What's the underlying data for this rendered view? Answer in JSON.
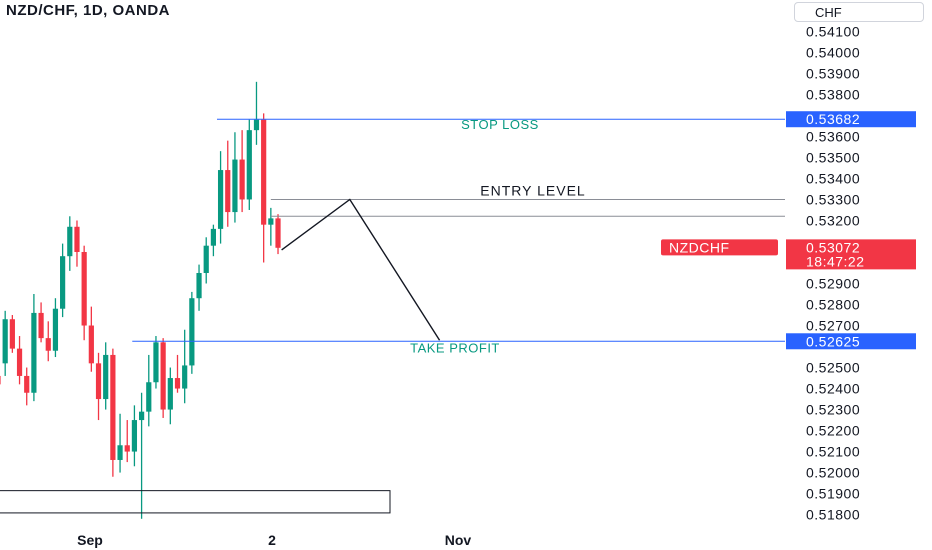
{
  "header": {
    "symbol_title": "NZD/CHF, 1D, OANDA",
    "currency_label": "CHF"
  },
  "chart_data": {
    "type": "candlestick",
    "symbol": "NZDCHF",
    "timeframe": "1D",
    "broker": "OANDA",
    "ylim": [
      0.5176,
      0.5414
    ],
    "y_ticks": [
      "0.54100",
      "0.54000",
      "0.53900",
      "0.53800",
      "0.53600",
      "0.53500",
      "0.53400",
      "0.53300",
      "0.53200",
      "0.52900",
      "0.52800",
      "0.52700",
      "0.52500",
      "0.52400",
      "0.52300",
      "0.52200",
      "0.52100",
      "0.52000",
      "0.51900",
      "0.51800"
    ],
    "x_ticks": [
      "Sep",
      "2",
      "Nov"
    ],
    "levels": {
      "stop_loss": {
        "label": "STOP LOSS",
        "price_label": "0.53682",
        "value": 0.53682,
        "color": "#2962ff"
      },
      "entry": {
        "label": "ENTRY LEVEL",
        "value": 0.533
      },
      "current_line": {
        "value": 0.5322
      },
      "take_profit": {
        "label": "TAKE PROFIT",
        "price_label": "0.52625",
        "value": 0.52625,
        "color": "#2962ff"
      }
    },
    "last_price": {
      "symbol": "NZDCHF",
      "price": "0.53072",
      "countdown": "18:47:22",
      "value": 0.53072,
      "color": "#f23645"
    },
    "projection": [
      {
        "bar": 39.5,
        "value": 0.5306
      },
      {
        "bar": 49,
        "value": 0.533
      },
      {
        "bar": 61.5,
        "value": 0.5263
      }
    ],
    "colors": {
      "up": "#089981",
      "down": "#f23645",
      "label_text": "#089981"
    },
    "candles": [
      {
        "o": 0.5246,
        "h": 0.5256,
        "l": 0.5238,
        "c": 0.5242
      },
      {
        "o": 0.5252,
        "h": 0.5277,
        "l": 0.5246,
        "c": 0.5273
      },
      {
        "o": 0.5273,
        "h": 0.5275,
        "l": 0.5257,
        "c": 0.5259
      },
      {
        "o": 0.5259,
        "h": 0.5265,
        "l": 0.5242,
        "c": 0.5246
      },
      {
        "o": 0.5246,
        "h": 0.525,
        "l": 0.5232,
        "c": 0.5238
      },
      {
        "o": 0.5238,
        "h": 0.5285,
        "l": 0.5234,
        "c": 0.5276
      },
      {
        "o": 0.5276,
        "h": 0.5281,
        "l": 0.5262,
        "c": 0.5264
      },
      {
        "o": 0.5264,
        "h": 0.5272,
        "l": 0.5253,
        "c": 0.5258
      },
      {
        "o": 0.5258,
        "h": 0.5283,
        "l": 0.5255,
        "c": 0.5278
      },
      {
        "o": 0.5278,
        "h": 0.5309,
        "l": 0.5274,
        "c": 0.5303
      },
      {
        "o": 0.5303,
        "h": 0.5322,
        "l": 0.5296,
        "c": 0.5317
      },
      {
        "o": 0.5317,
        "h": 0.532,
        "l": 0.5298,
        "c": 0.5305
      },
      {
        "o": 0.5305,
        "h": 0.5308,
        "l": 0.5263,
        "c": 0.527
      },
      {
        "o": 0.527,
        "h": 0.5279,
        "l": 0.5248,
        "c": 0.5252
      },
      {
        "o": 0.5252,
        "h": 0.5257,
        "l": 0.5225,
        "c": 0.5235
      },
      {
        "o": 0.5235,
        "h": 0.5262,
        "l": 0.523,
        "c": 0.5256
      },
      {
        "o": 0.5256,
        "h": 0.5259,
        "l": 0.5198,
        "c": 0.5206
      },
      {
        "o": 0.5206,
        "h": 0.5228,
        "l": 0.52,
        "c": 0.5213
      },
      {
        "o": 0.5213,
        "h": 0.5225,
        "l": 0.5205,
        "c": 0.521
      },
      {
        "o": 0.521,
        "h": 0.5232,
        "l": 0.5203,
        "c": 0.5225
      },
      {
        "o": 0.5225,
        "h": 0.5238,
        "l": 0.5178,
        "c": 0.5229
      },
      {
        "o": 0.5229,
        "h": 0.5256,
        "l": 0.5222,
        "c": 0.5243
      },
      {
        "o": 0.5243,
        "h": 0.5265,
        "l": 0.524,
        "c": 0.5262
      },
      {
        "o": 0.5262,
        "h": 0.5264,
        "l": 0.5226,
        "c": 0.523
      },
      {
        "o": 0.523,
        "h": 0.525,
        "l": 0.5223,
        "c": 0.5245
      },
      {
        "o": 0.5245,
        "h": 0.5256,
        "l": 0.5238,
        "c": 0.524
      },
      {
        "o": 0.524,
        "h": 0.5268,
        "l": 0.5233,
        "c": 0.5251
      },
      {
        "o": 0.5251,
        "h": 0.5286,
        "l": 0.5247,
        "c": 0.5283
      },
      {
        "o": 0.5283,
        "h": 0.5299,
        "l": 0.5277,
        "c": 0.5295
      },
      {
        "o": 0.5295,
        "h": 0.5312,
        "l": 0.529,
        "c": 0.5308
      },
      {
        "o": 0.5308,
        "h": 0.5318,
        "l": 0.5303,
        "c": 0.5316
      },
      {
        "o": 0.5316,
        "h": 0.5353,
        "l": 0.5309,
        "c": 0.5344
      },
      {
        "o": 0.5344,
        "h": 0.5358,
        "l": 0.5317,
        "c": 0.5324
      },
      {
        "o": 0.5324,
        "h": 0.5362,
        "l": 0.5319,
        "c": 0.5349
      },
      {
        "o": 0.5349,
        "h": 0.5363,
        "l": 0.5324,
        "c": 0.533
      },
      {
        "o": 0.533,
        "h": 0.5368,
        "l": 0.5325,
        "c": 0.5363
      },
      {
        "o": 0.5363,
        "h": 0.5386,
        "l": 0.5356,
        "c": 0.5368
      },
      {
        "o": 0.5368,
        "h": 0.5371,
        "l": 0.53,
        "c": 0.5318
      },
      {
        "o": 0.5318,
        "h": 0.5326,
        "l": 0.5308,
        "c": 0.5321
      },
      {
        "o": 0.5321,
        "h": 0.5323,
        "l": 0.5304,
        "c": 0.5307
      }
    ]
  },
  "annotations": {
    "box": {
      "top_value": 0.51914,
      "bottom_value": 0.51808
    }
  }
}
